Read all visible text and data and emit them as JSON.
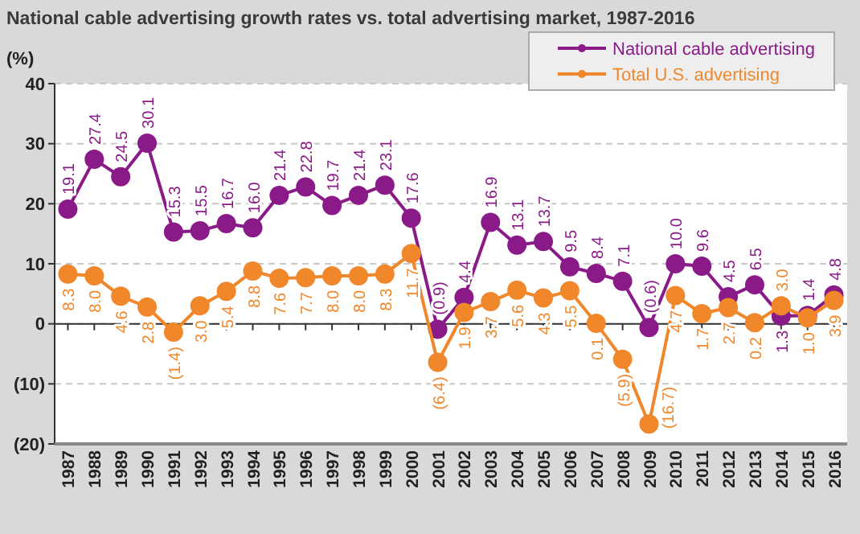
{
  "chart_data": {
    "type": "line",
    "title": "National cable advertising growth rates vs. total advertising market, 1987-2016",
    "ylabel": "(%)",
    "categories": [
      "1987",
      "1988",
      "1989",
      "1990",
      "1991",
      "1992",
      "1993",
      "1994",
      "1995",
      "1996",
      "1997",
      "1998",
      "1999",
      "2000",
      "2001",
      "2002",
      "2003",
      "2004",
      "2005",
      "2006",
      "2007",
      "2008",
      "2009",
      "2010",
      "2011",
      "2012",
      "2013",
      "2014",
      "2015",
      "2016"
    ],
    "ylim": [
      -20,
      40
    ],
    "yticks": [
      {
        "value": -20,
        "label": "(20)"
      },
      {
        "value": -10,
        "label": "(10)"
      },
      0,
      10,
      20,
      30,
      40
    ],
    "grid": "y",
    "legend": "top right",
    "marker": "circle",
    "line_style": "solid",
    "series": [
      {
        "name": "National cable advertising",
        "color": "#8b1a89",
        "values": [
          19.1,
          27.4,
          24.5,
          30.1,
          15.3,
          15.5,
          16.7,
          16.0,
          21.4,
          22.8,
          19.7,
          21.4,
          23.1,
          17.6,
          -0.9,
          4.4,
          16.9,
          13.1,
          13.7,
          9.5,
          8.4,
          7.1,
          -0.6,
          10.0,
          9.6,
          4.5,
          6.5,
          1.3,
          1.4,
          4.8
        ],
        "value_labels": [
          "19.1",
          "27.4",
          "24.5",
          "30.1",
          "15.3",
          "15.5",
          "16.7",
          "16.0",
          "21.4",
          "22.8",
          "19.7",
          "21.4",
          "23.1",
          "17.6",
          "(0.9)",
          "4.4",
          "16.9",
          "13.1",
          "13.7",
          "9.5",
          "8.4",
          "7.1",
          "(0.6)",
          "10.0",
          "9.6",
          "4.5",
          "6.5",
          "1.3",
          "1.4",
          "4.8"
        ]
      },
      {
        "name": "Total U.S. advertising",
        "color": "#f0872a",
        "values": [
          8.3,
          8.0,
          4.6,
          2.8,
          -1.4,
          3.0,
          5.4,
          8.8,
          7.6,
          7.7,
          8.0,
          8.0,
          8.3,
          11.7,
          -6.4,
          1.9,
          3.7,
          5.6,
          4.3,
          5.5,
          0.1,
          -5.9,
          -16.7,
          4.7,
          1.7,
          2.7,
          0.2,
          3.0,
          1.0,
          3.9
        ],
        "value_labels": [
          "8.3",
          "8.0",
          "4.6",
          "2.8",
          "(1.4)",
          "3.0",
          "5.4",
          "8.8",
          "7.6",
          "7.7",
          "8.0",
          "8.0",
          "8.3",
          "11.7",
          "(6.4)",
          "1.9",
          "3.7",
          "5.6",
          "4.3",
          "5.5",
          "0.1",
          "(5.9)",
          "(16.7)",
          "4.7",
          "1.7",
          "2.7",
          "0.2",
          "3.0",
          "1.0",
          "3.9"
        ]
      }
    ]
  }
}
